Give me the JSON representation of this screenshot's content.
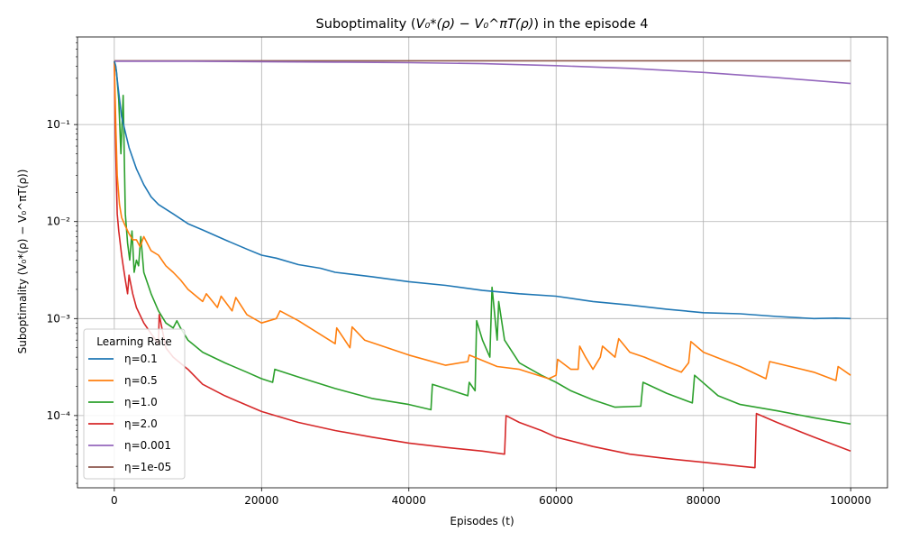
{
  "chart_data": {
    "type": "line",
    "title_main": "Suboptimality (",
    "title_expr": "V₀*(ρ) − V₀^πT(ρ)",
    "title_tail": ") in the episode 4",
    "xlabel": "Episodes (t)",
    "ylabel": "Suboptimality (V₀*(ρ) − V₀^πT(ρ))",
    "x_scale": "linear",
    "y_scale": "log",
    "xlim": [
      -5000,
      105000
    ],
    "ylim": [
      1.8e-05,
      0.8
    ],
    "x_ticks": [
      0,
      20000,
      40000,
      60000,
      80000,
      100000
    ],
    "x_tick_labels": [
      "0",
      "20000",
      "40000",
      "60000",
      "80000",
      "100000"
    ],
    "y_ticks": [
      0.0001,
      0.001,
      0.01,
      0.1
    ],
    "y_tick_labels": [
      "10⁻⁴",
      "10⁻³",
      "10⁻²",
      "10⁻¹"
    ],
    "grid": true,
    "legend_title": "Learning Rate",
    "legend_position": "lower-left",
    "series": [
      {
        "name": "η=0.1",
        "color": "#1f77b4",
        "x": [
          0,
          200,
          500,
          1000,
          2000,
          3000,
          4000,
          5000,
          6000,
          8000,
          10000,
          12000,
          15000,
          18000,
          20000,
          22000,
          25000,
          28000,
          30000,
          35000,
          40000,
          45000,
          50000,
          55000,
          60000,
          65000,
          70000,
          75000,
          80000,
          85000,
          90000,
          95000,
          98000,
          100000
        ],
        "y": [
          0.45,
          0.4,
          0.25,
          0.12,
          0.058,
          0.035,
          0.024,
          0.018,
          0.015,
          0.012,
          0.0095,
          0.0082,
          0.0065,
          0.0052,
          0.0045,
          0.0042,
          0.0036,
          0.0033,
          0.003,
          0.0027,
          0.0024,
          0.0022,
          0.00195,
          0.0018,
          0.0017,
          0.0015,
          0.00138,
          0.00125,
          0.00115,
          0.00112,
          0.00105,
          0.001,
          0.00101,
          0.001
        ]
      },
      {
        "name": "η=0.5",
        "color": "#ff7f0e",
        "x": [
          0,
          200,
          400,
          700,
          1000,
          1500,
          2000,
          2500,
          3000,
          3500,
          4000,
          5000,
          6000,
          7000,
          8000,
          9000,
          10000,
          12000,
          12500,
          14000,
          14500,
          16000,
          16500,
          18000,
          20000,
          22000,
          22500,
          25000,
          30000,
          30200,
          32000,
          32300,
          34000,
          40000,
          45000,
          48000,
          48200,
          52000,
          55000,
          59000,
          60000,
          60200,
          62000,
          63000,
          63200,
          64000,
          65000,
          66000,
          66300,
          68000,
          68500,
          70000,
          72000,
          75000,
          77000,
          78000,
          78300,
          80000,
          85000,
          88500,
          89000,
          95000,
          98000,
          98300,
          100000
        ],
        "y": [
          0.45,
          0.1,
          0.03,
          0.015,
          0.011,
          0.009,
          0.0075,
          0.0065,
          0.0065,
          0.0055,
          0.007,
          0.005,
          0.0045,
          0.0035,
          0.003,
          0.0025,
          0.002,
          0.0015,
          0.0018,
          0.0013,
          0.0017,
          0.0012,
          0.00165,
          0.0011,
          0.0009,
          0.001,
          0.0012,
          0.00095,
          0.00055,
          0.0008,
          0.0005,
          0.00082,
          0.0006,
          0.00042,
          0.00033,
          0.00036,
          0.00042,
          0.00032,
          0.0003,
          0.00024,
          0.00026,
          0.00038,
          0.0003,
          0.0003,
          0.00052,
          0.0004,
          0.0003,
          0.0004,
          0.00052,
          0.0004,
          0.00062,
          0.00045,
          0.0004,
          0.00032,
          0.00028,
          0.00035,
          0.00058,
          0.00045,
          0.00032,
          0.00024,
          0.00036,
          0.00028,
          0.00023,
          0.00032,
          0.00026
        ]
      },
      {
        "name": "η=1.0",
        "color": "#2ca02c",
        "x": [
          0,
          100,
          300,
          600,
          900,
          1200,
          1500,
          1800,
          2100,
          2400,
          2700,
          3000,
          3300,
          3600,
          4000,
          5000,
          6000,
          7000,
          8000,
          8500,
          9000,
          10000,
          12000,
          15000,
          18000,
          20000,
          21500,
          21800,
          25000,
          30000,
          35000,
          40000,
          43000,
          43200,
          45000,
          48000,
          48200,
          49000,
          49200,
          50000,
          51000,
          51300,
          52000,
          52200,
          53000,
          55000,
          58000,
          60000,
          62000,
          65000,
          68000,
          71500,
          71800,
          75000,
          78500,
          78800,
          82000,
          85000,
          90000,
          95000,
          100000
        ],
        "y": [
          0.45,
          0.42,
          0.35,
          0.18,
          0.05,
          0.2,
          0.012,
          0.006,
          0.004,
          0.008,
          0.003,
          0.004,
          0.0035,
          0.007,
          0.003,
          0.0018,
          0.0012,
          0.0009,
          0.0008,
          0.00095,
          0.0008,
          0.0006,
          0.00045,
          0.00035,
          0.00028,
          0.00024,
          0.00022,
          0.0003,
          0.00025,
          0.00019,
          0.00015,
          0.00013,
          0.000115,
          0.00021,
          0.00019,
          0.00016,
          0.00022,
          0.00018,
          0.00095,
          0.0006,
          0.0004,
          0.0021,
          0.0006,
          0.0015,
          0.0006,
          0.00035,
          0.00026,
          0.00022,
          0.00018,
          0.000145,
          0.000122,
          0.000125,
          0.00022,
          0.00017,
          0.000135,
          0.00026,
          0.00016,
          0.00013,
          0.000112,
          9.5e-05,
          8.2e-05
        ]
      },
      {
        "name": "η=2.0",
        "color": "#d62728",
        "x": [
          0,
          100,
          200,
          400,
          600,
          800,
          1000,
          1200,
          1500,
          1800,
          2000,
          2500,
          3000,
          4000,
          5000,
          6000,
          6100,
          7000,
          8000,
          10000,
          12000,
          15000,
          20000,
          25000,
          30000,
          35000,
          40000,
          45000,
          50000,
          53000,
          53200,
          55000,
          58000,
          60000,
          65000,
          70000,
          75000,
          80000,
          85000,
          87000,
          87200,
          90000,
          95000,
          100000
        ],
        "y": [
          0.45,
          0.11,
          0.05,
          0.012,
          0.008,
          0.006,
          0.0045,
          0.0035,
          0.0025,
          0.0018,
          0.0028,
          0.0018,
          0.0013,
          0.0009,
          0.0007,
          0.00055,
          0.0011,
          0.0005,
          0.0004,
          0.0003,
          0.00021,
          0.00016,
          0.00011,
          8.5e-05,
          7e-05,
          6e-05,
          5.2e-05,
          4.7e-05,
          4.3e-05,
          4e-05,
          0.0001,
          8.5e-05,
          7e-05,
          6e-05,
          4.8e-05,
          4e-05,
          3.6e-05,
          3.3e-05,
          3e-05,
          2.9e-05,
          0.000105,
          8.5e-05,
          6e-05,
          4.3e-05
        ]
      },
      {
        "name": "η=0.001",
        "color": "#9467bd",
        "x": [
          0,
          10000,
          20000,
          30000,
          40000,
          50000,
          60000,
          70000,
          80000,
          90000,
          100000
        ],
        "y": [
          0.45,
          0.45,
          0.445,
          0.44,
          0.435,
          0.425,
          0.405,
          0.38,
          0.345,
          0.305,
          0.265
        ]
      },
      {
        "name": "η=1e-05",
        "color": "#8c564b",
        "x": [
          0,
          25000,
          50000,
          75000,
          100000
        ],
        "y": [
          0.455,
          0.455,
          0.455,
          0.455,
          0.455
        ]
      }
    ]
  }
}
